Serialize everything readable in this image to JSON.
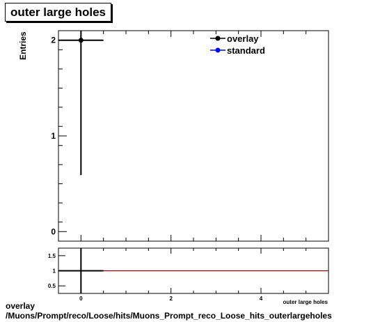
{
  "title": "outer large holes",
  "caption": {
    "line1": "overlay",
    "line2": "/Muons/Prompt/reco/Loose/hits/Muons_Prompt_reco_Loose_hits_outerlargeholes"
  },
  "chart_data": [
    {
      "type": "scatter",
      "panel": "main",
      "ylabel": "Entries",
      "xlim": [
        -0.5,
        5.5
      ],
      "ylim": [
        -0.1,
        2.1
      ],
      "yticks": [
        0,
        1,
        2
      ],
      "grid": false,
      "legend_placement": "top-right",
      "series": [
        {
          "name": "overlay",
          "color": "#000000",
          "points": [
            {
              "x": 0,
              "y": 2,
              "xerr": 0.5,
              "yerr": 1.41
            }
          ]
        },
        {
          "name": "standard",
          "color": "#0000ff",
          "points": []
        }
      ]
    },
    {
      "type": "line",
      "panel": "ratio",
      "xlabel": "outer large holes",
      "xlim": [
        -0.5,
        5.5
      ],
      "ylim": [
        0.25,
        1.75
      ],
      "xticks": [
        0,
        2,
        4
      ],
      "yticks": [
        0.5,
        1,
        1.5
      ],
      "reference_line": {
        "y": 1,
        "color": "#8b0000"
      },
      "series": [
        {
          "name": "ratio",
          "color": "#000000",
          "points": [
            {
              "x": 0,
              "y": 1,
              "xerr": 0.5,
              "ylow": 0.25,
              "yhigh": 1.75
            }
          ]
        }
      ]
    }
  ]
}
